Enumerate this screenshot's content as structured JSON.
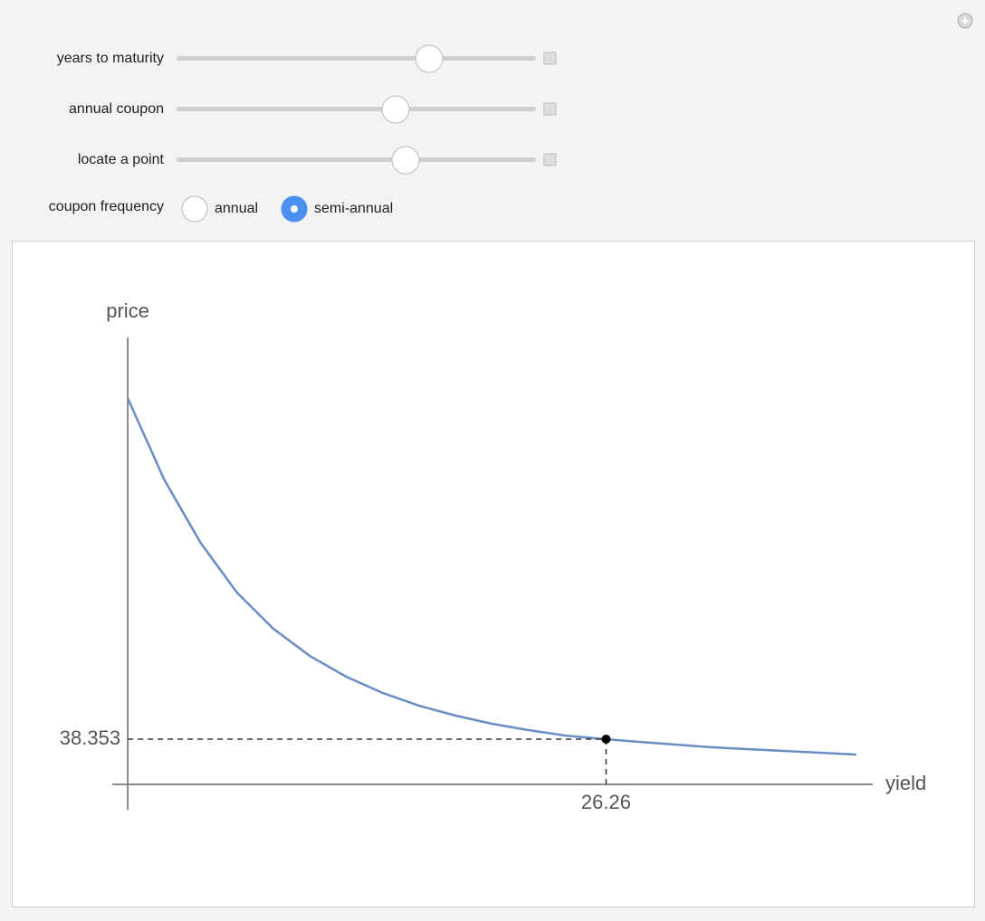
{
  "controls": {
    "sliders": [
      {
        "label": "years to maturity"
      },
      {
        "label": "annual coupon"
      },
      {
        "label": "locate a point"
      }
    ],
    "radio": {
      "label": "coupon frequency",
      "options": [
        "annual",
        "semi-annual"
      ],
      "selected": 1
    }
  },
  "chart_data": {
    "type": "line",
    "x_label": "yield",
    "y_label": "price",
    "color": "#6b8cc4",
    "x": [
      0,
      2,
      4,
      6,
      8,
      10,
      12,
      14,
      16,
      18,
      20,
      22,
      24,
      26,
      28,
      30,
      32,
      34,
      36,
      38,
      40
    ],
    "values": [
      327.5,
      258.5,
      204.8,
      162.6,
      131.9,
      108.9,
      91.3,
      77.5,
      66.7,
      58.3,
      51.4,
      46.0,
      41.4,
      38.6,
      36.1,
      33.8,
      31.5,
      29.9,
      28.4,
      26.8,
      25.3
    ],
    "xlim": [
      -0.85,
      40.9
    ],
    "ylim": [
      -21.5,
      379
    ],
    "point": {
      "x": 26.26,
      "y": 38.353
    }
  }
}
